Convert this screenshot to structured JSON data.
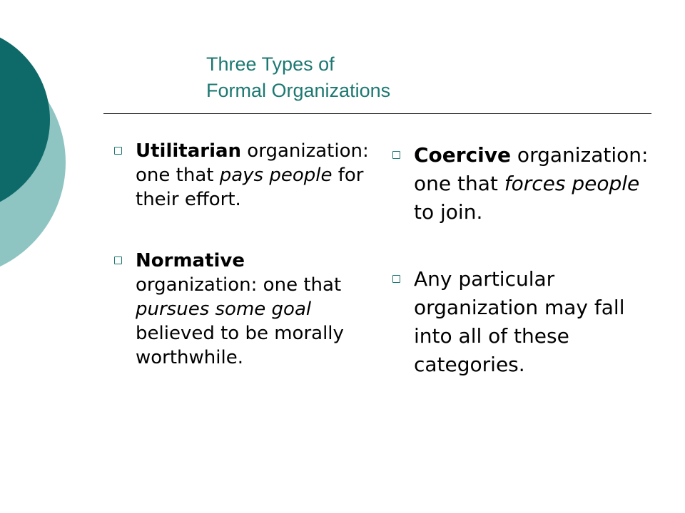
{
  "title": {
    "line1": "Three Types of",
    "line2": "Formal Organizations"
  },
  "colors": {
    "accent": "#1d7872",
    "deco_dark": "#0e6a68",
    "deco_light": "#8ec5c2"
  },
  "left_column": [
    {
      "term": "Utilitarian",
      "before": " organization: one that ",
      "emphasis": "pays people",
      "after": " for their effort."
    },
    {
      "term": "Normative",
      "before": " organization: one that ",
      "emphasis": "pursues some goal",
      "after": " believed to be morally worthwhile."
    }
  ],
  "right_column": [
    {
      "term": "Coercive",
      "before": " organization: one that ",
      "emphasis": "forces people",
      "after": " to join."
    },
    {
      "text": "Any particular organization may fall into all of these categories."
    }
  ]
}
